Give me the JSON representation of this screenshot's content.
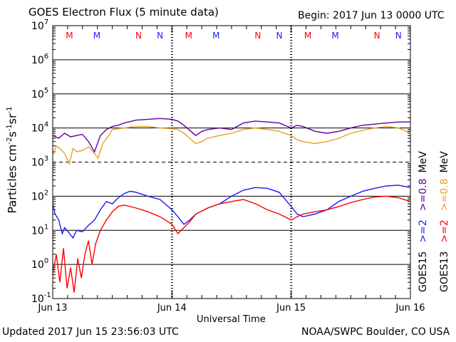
{
  "header": {
    "title": "GOES Electron Flux (5 minute data)",
    "begin": "Begin: 2017 Jun 13 0000 UTC"
  },
  "footer": {
    "updated": "Updated 2017 Jun 15 23:56:03 UTC",
    "credit": "NOAA/SWPC Boulder, CO USA"
  },
  "colors": {
    "goes15_08": "#660099",
    "goes13_08": "#e8a020",
    "goes15_2": "#1a1aff",
    "goes13_2": "#ff0000",
    "grid": "#000000"
  },
  "chart_data": {
    "type": "line",
    "title": "GOES Electron Flux (5 minute data)",
    "xlabel": "Universal Time",
    "ylabel": "Particles cm-2s-1sr-1",
    "yscale": "log",
    "ylim": [
      0.1,
      10000000
    ],
    "x_ticks": [
      "Jun 13",
      "Jun 14",
      "Jun 15",
      "Jun 16"
    ],
    "y_ticks": [
      {
        "base": "10",
        "exp": "-1"
      },
      {
        "base": "10",
        "exp": "0"
      },
      {
        "base": "10",
        "exp": "1"
      },
      {
        "base": "10",
        "exp": "2"
      },
      {
        "base": "10",
        "exp": "3"
      },
      {
        "base": "10",
        "exp": "4"
      },
      {
        "base": "10",
        "exp": "5"
      },
      {
        "base": "10",
        "exp": "6"
      },
      {
        "base": "10",
        "exp": "7"
      }
    ],
    "markers": [
      {
        "label": "M",
        "day": 0.14,
        "color": "#ff0000"
      },
      {
        "label": "M",
        "day": 0.37,
        "color": "#1a1aff"
      },
      {
        "label": "N",
        "day": 0.72,
        "color": "#ff0000"
      },
      {
        "label": "N",
        "day": 0.9,
        "color": "#1a1aff"
      },
      {
        "label": "M",
        "day": 1.14,
        "color": "#ff0000"
      },
      {
        "label": "M",
        "day": 1.37,
        "color": "#1a1aff"
      },
      {
        "label": "N",
        "day": 1.72,
        "color": "#ff0000"
      },
      {
        "label": "N",
        "day": 1.9,
        "color": "#1a1aff"
      },
      {
        "label": "M",
        "day": 2.14,
        "color": "#ff0000"
      },
      {
        "label": "M",
        "day": 2.37,
        "color": "#1a1aff"
      },
      {
        "label": "N",
        "day": 2.72,
        "color": "#ff0000"
      },
      {
        "label": "N",
        "day": 2.9,
        "color": "#1a1aff"
      }
    ],
    "legend": [
      {
        "sat": "GOES15",
        "label": ">=2",
        "label2": ">=0.8",
        "unit": "MeV",
        "c1": "#1a1aff",
        "c2": "#660099"
      },
      {
        "sat": "GOES13",
        "label": ">=2",
        "label2": ">=0.8",
        "unit": "MeV",
        "c1": "#ff0000",
        "c2": "#e8a020"
      }
    ],
    "series": [
      {
        "name": ">=0.8 MeV GOES15",
        "color": "#660099",
        "x": [
          0,
          0.05,
          0.1,
          0.15,
          0.2,
          0.25,
          0.3,
          0.35,
          0.4,
          0.45,
          0.5,
          0.55,
          0.6,
          0.7,
          0.8,
          0.9,
          1.0,
          1.05,
          1.1,
          1.2,
          1.25,
          1.3,
          1.35,
          1.4,
          1.5,
          1.6,
          1.7,
          1.8,
          1.9,
          2.0,
          2.05,
          2.1,
          2.2,
          2.3,
          2.4,
          2.5,
          2.6,
          2.7,
          2.8,
          2.9,
          3.0
        ],
        "y": [
          6000,
          5000,
          7000,
          5500,
          6000,
          6500,
          4000,
          2000,
          6000,
          9000,
          11000,
          12000,
          14000,
          17000,
          18000,
          19000,
          18000,
          16000,
          12000,
          6000,
          8000,
          9000,
          9500,
          10000,
          9000,
          14000,
          16000,
          15000,
          14000,
          10000,
          12000,
          11000,
          8000,
          7000,
          8000,
          10000,
          12000,
          13000,
          14000,
          15000,
          15000
        ]
      },
      {
        "name": ">=0.8 MeV GOES13",
        "color": "#e8a020",
        "x": [
          0,
          0.03,
          0.06,
          0.1,
          0.14,
          0.17,
          0.2,
          0.25,
          0.3,
          0.35,
          0.38,
          0.42,
          0.47,
          0.5,
          0.6,
          0.7,
          0.8,
          0.9,
          1.0,
          1.05,
          1.1,
          1.2,
          1.25,
          1.3,
          1.4,
          1.5,
          1.6,
          1.7,
          1.8,
          1.9,
          2.0,
          2.05,
          2.1,
          2.2,
          2.3,
          2.4,
          2.5,
          2.6,
          2.7,
          2.8,
          2.9,
          3.0
        ],
        "y": [
          1500,
          3000,
          2500,
          1800,
          900,
          2500,
          2000,
          2200,
          2800,
          1800,
          1300,
          3500,
          6000,
          9000,
          10000,
          11000,
          11000,
          10000,
          9500,
          9000,
          7000,
          3500,
          4000,
          5000,
          6000,
          7000,
          9000,
          10000,
          9000,
          8000,
          6000,
          4500,
          4000,
          3500,
          4000,
          5000,
          7000,
          8500,
          10000,
          11000,
          10000,
          7000
        ]
      },
      {
        "name": ">=2 MeV GOES15",
        "color": "#1a1aff",
        "x": [
          0,
          0.02,
          0.05,
          0.08,
          0.1,
          0.13,
          0.17,
          0.2,
          0.25,
          0.3,
          0.35,
          0.4,
          0.45,
          0.5,
          0.55,
          0.6,
          0.65,
          0.7,
          0.8,
          0.9,
          1.0,
          1.05,
          1.1,
          1.15,
          1.2,
          1.3,
          1.4,
          1.5,
          1.6,
          1.7,
          1.8,
          1.9,
          2.0,
          2.05,
          2.1,
          2.2,
          2.3,
          2.4,
          2.5,
          2.6,
          2.7,
          2.8,
          2.9,
          3.0
        ],
        "y": [
          60,
          30,
          20,
          8,
          12,
          9,
          6,
          10,
          9,
          14,
          20,
          40,
          70,
          60,
          90,
          120,
          140,
          130,
          100,
          80,
          40,
          25,
          15,
          20,
          30,
          45,
          60,
          100,
          150,
          180,
          170,
          130,
          50,
          30,
          25,
          30,
          40,
          70,
          100,
          140,
          170,
          200,
          210,
          180
        ]
      },
      {
        "name": ">=2 MeV GOES13",
        "color": "#ff0000",
        "x": [
          0,
          0.03,
          0.06,
          0.09,
          0.12,
          0.15,
          0.18,
          0.21,
          0.24,
          0.27,
          0.3,
          0.33,
          0.36,
          0.4,
          0.45,
          0.5,
          0.55,
          0.6,
          0.7,
          0.8,
          0.9,
          1.0,
          1.05,
          1.1,
          1.15,
          1.2,
          1.3,
          1.4,
          1.5,
          1.6,
          1.7,
          1.8,
          1.9,
          2.0,
          2.05,
          2.1,
          2.2,
          2.3,
          2.4,
          2.5,
          2.6,
          2.7,
          2.8,
          2.9,
          3.0
        ],
        "y": [
          0.5,
          2,
          0.3,
          3,
          0.2,
          0.8,
          0.15,
          1.5,
          0.4,
          2,
          5,
          1,
          4,
          10,
          20,
          35,
          50,
          55,
          45,
          35,
          25,
          15,
          8,
          12,
          18,
          30,
          45,
          60,
          70,
          80,
          60,
          40,
          30,
          20,
          25,
          30,
          35,
          40,
          50,
          65,
          80,
          95,
          100,
          90,
          70
        ]
      }
    ]
  }
}
